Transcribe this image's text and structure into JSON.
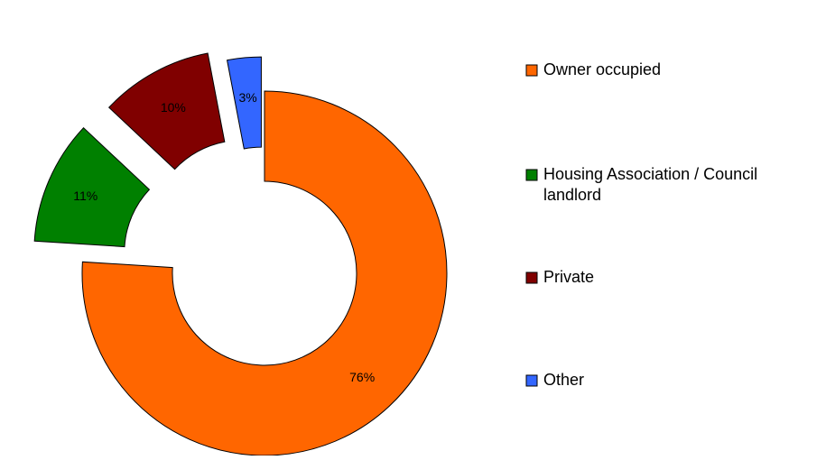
{
  "chart_data": {
    "type": "pie",
    "variant": "exploded-donut",
    "title": "",
    "series": [
      {
        "name": "Owner occupied",
        "value": 76,
        "label": "76%",
        "color": "#FF6600"
      },
      {
        "name": "Housing Association / Council landlord",
        "value": 11,
        "label": "11%",
        "color": "#008000"
      },
      {
        "name": "Private",
        "value": 10,
        "label": "10%",
        "color": "#800000"
      },
      {
        "name": "Other",
        "value": 3,
        "label": "3%",
        "color": "#3366FF"
      }
    ],
    "legend": {
      "position": "right",
      "entries": [
        {
          "lines": [
            "Owner occupied"
          ],
          "color": "#FF6600"
        },
        {
          "lines": [
            "Housing Association / Council",
            "landlord"
          ],
          "color": "#008000"
        },
        {
          "lines": [
            "Private"
          ],
          "color": "#800000"
        },
        {
          "lines": [
            "Other"
          ],
          "color": "#3366FF"
        }
      ]
    }
  }
}
